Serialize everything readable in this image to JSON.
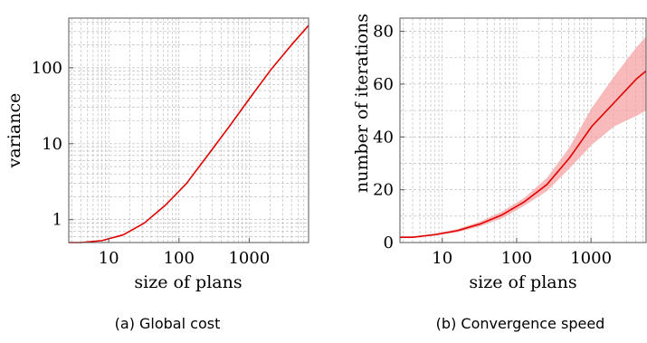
{
  "chart_data": [
    {
      "type": "line",
      "caption": "(a) Global cost",
      "xlabel": "size of plans",
      "ylabel": "variance",
      "x_scale": "log",
      "y_scale": "log",
      "xlim": [
        2.7,
        7000
      ],
      "ylim": [
        0.5,
        450
      ],
      "x_ticks": [
        10,
        100,
        1000
      ],
      "x_tick_labels": [
        "10",
        "100",
        "1000"
      ],
      "y_ticks": [
        1,
        10,
        100
      ],
      "y_tick_labels": [
        "1",
        "10",
        "100"
      ],
      "grid": true,
      "line_color": "#e00000",
      "series": [
        {
          "x": [
            2.7,
            4,
            8,
            16,
            32,
            64,
            128,
            256,
            512,
            1024,
            2048,
            4096,
            7000
          ],
          "y": [
            0.5,
            0.5,
            0.53,
            0.63,
            0.9,
            1.55,
            3.0,
            7.0,
            16.5,
            40,
            95,
            205,
            360
          ]
        }
      ]
    },
    {
      "type": "line",
      "caption": "(b) Convergence speed",
      "xlabel": "size of plans",
      "ylabel": "number of iterations",
      "x_scale": "log",
      "y_scale": "linear",
      "xlim": [
        2.7,
        5500
      ],
      "ylim": [
        0,
        85
      ],
      "x_ticks": [
        10,
        100,
        1000
      ],
      "x_tick_labels": [
        "10",
        "100",
        "1000"
      ],
      "y_ticks": [
        0,
        20,
        40,
        60,
        80
      ],
      "y_tick_labels": [
        "0",
        "20",
        "40",
        "60",
        "80"
      ],
      "grid": true,
      "line_color": "#e00000",
      "band_color": "#f5a3a3",
      "series": [
        {
          "x": [
            2.7,
            4,
            8,
            16,
            32,
            64,
            128,
            256,
            512,
            1024,
            2048,
            4096,
            5500
          ],
          "y": [
            2,
            2,
            3,
            4.5,
            7,
            10.5,
            15.5,
            22,
            32,
            44,
            53,
            62,
            65
          ],
          "y_lower": [
            1.8,
            1.8,
            2.6,
            3.9,
            6.1,
            9.2,
            14,
            19.5,
            28,
            37,
            44,
            48,
            50
          ],
          "y_upper": [
            2.3,
            2.3,
            3.4,
            5.1,
            7.9,
            11.8,
            17,
            24.5,
            36,
            51,
            63,
            74,
            78
          ]
        }
      ]
    }
  ]
}
